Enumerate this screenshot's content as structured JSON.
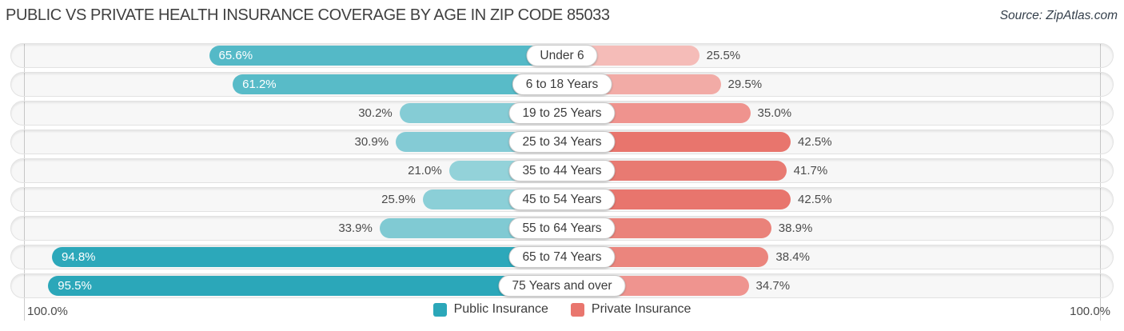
{
  "header": {
    "title": "PUBLIC VS PRIVATE HEALTH INSURANCE COVERAGE BY AGE IN ZIP CODE 85033",
    "source": "Source: ZipAtlas.com"
  },
  "footer": {
    "left_axis_label": "100.0%",
    "right_axis_label": "100.0%"
  },
  "legend": {
    "items": [
      {
        "label": "Public Insurance",
        "color": "#2ba7b9"
      },
      {
        "label": "Private Insurance",
        "color": "#e9766e"
      }
    ]
  },
  "chart_data": {
    "type": "bar",
    "variant": "diverging-horizontal",
    "title": "PUBLIC VS PRIVATE HEALTH INSURANCE COVERAGE BY AGE IN ZIP CODE 85033",
    "axis_range_percent": [
      0,
      100
    ],
    "grid": "edge-lines-at-100-percent",
    "legend_position": "bottom-center",
    "categories": [
      "Under 6",
      "6 to 18 Years",
      "19 to 25 Years",
      "25 to 34 Years",
      "35 to 44 Years",
      "45 to 54 Years",
      "55 to 64 Years",
      "65 to 74 Years",
      "75 Years and over"
    ],
    "series": [
      {
        "name": "Public Insurance",
        "side": "left",
        "values": [
          65.6,
          61.2,
          30.2,
          30.9,
          21.0,
          25.9,
          33.9,
          94.8,
          95.5
        ],
        "labels": [
          "65.6%",
          "61.2%",
          "30.2%",
          "30.9%",
          "21.0%",
          "25.9%",
          "33.9%",
          "94.8%",
          "95.5%"
        ],
        "colors": [
          "#54b9c7",
          "#58bbc8",
          "#85ccd5",
          "#84cbd5",
          "#93d2d9",
          "#8bcfd7",
          "#80cad3",
          "#2ca8ba",
          "#2ba7b9"
        ]
      },
      {
        "name": "Private Insurance",
        "side": "right",
        "values": [
          25.5,
          29.5,
          35.0,
          42.5,
          41.7,
          42.5,
          38.9,
          38.4,
          34.7
        ],
        "labels": [
          "25.5%",
          "29.5%",
          "35.0%",
          "42.5%",
          "41.7%",
          "42.5%",
          "38.9%",
          "38.4%",
          "34.7%"
        ],
        "colors": [
          "#f5bcb8",
          "#f2aba6",
          "#ef938e",
          "#e8756d",
          "#e87a72",
          "#e8756d",
          "#ea827a",
          "#eb857d",
          "#ef948f"
        ]
      }
    ]
  }
}
